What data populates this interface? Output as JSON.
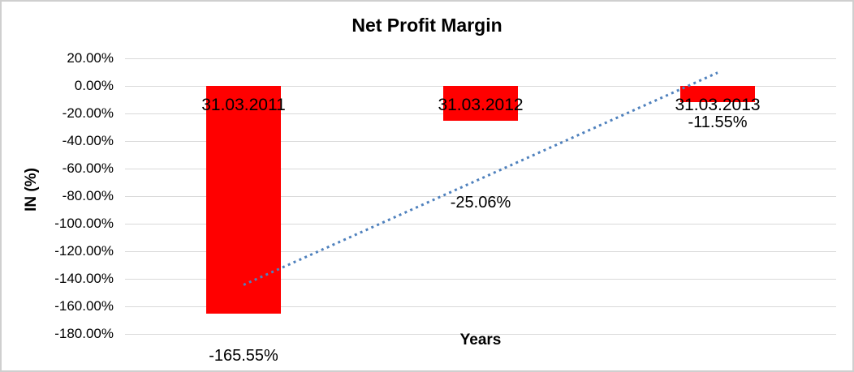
{
  "chart": {
    "title": "Net Profit Margin",
    "y_axis_title": "IN (%)",
    "x_axis_title": "Years",
    "colors": {
      "bar": "#ff0000",
      "trendline": "#4f81bd",
      "gridline": "#d9d9d9",
      "text": "#000000",
      "frame_border": "#cfcfcf",
      "background": "#ffffff"
    }
  },
  "chart_data": {
    "type": "bar",
    "title": "Net Profit Margin",
    "xlabel": "Years",
    "ylabel": "IN (%)",
    "categories": [
      "31.03.2011",
      "31.03.2012",
      "31.03.2013"
    ],
    "values": [
      -165.55,
      -25.06,
      -11.55
    ],
    "data_labels": [
      "-165.55%",
      "-25.06%",
      "-11.55%"
    ],
    "y_ticks": [
      {
        "value": 20,
        "label": "20.00%"
      },
      {
        "value": 0,
        "label": "0.00%"
      },
      {
        "value": -20,
        "label": "-20.00%"
      },
      {
        "value": -40,
        "label": "-40.00%"
      },
      {
        "value": -60,
        "label": "-60.00%"
      },
      {
        "value": -80,
        "label": "-80.00%"
      },
      {
        "value": -100,
        "label": "-100.00%"
      },
      {
        "value": -120,
        "label": "-120.00%"
      },
      {
        "value": -140,
        "label": "-140.00%"
      },
      {
        "value": -160,
        "label": "-160.00%"
      },
      {
        "value": -180,
        "label": "-180.00%"
      }
    ],
    "ylim": [
      -180,
      20
    ],
    "grid": true,
    "legend": "none",
    "trendline": {
      "type": "linear",
      "line_style": "dotted",
      "color": "#4f81bd",
      "start": {
        "category_index": 0,
        "value": -144.4
      },
      "end": {
        "category_index": 2,
        "value": 9.6
      }
    }
  }
}
